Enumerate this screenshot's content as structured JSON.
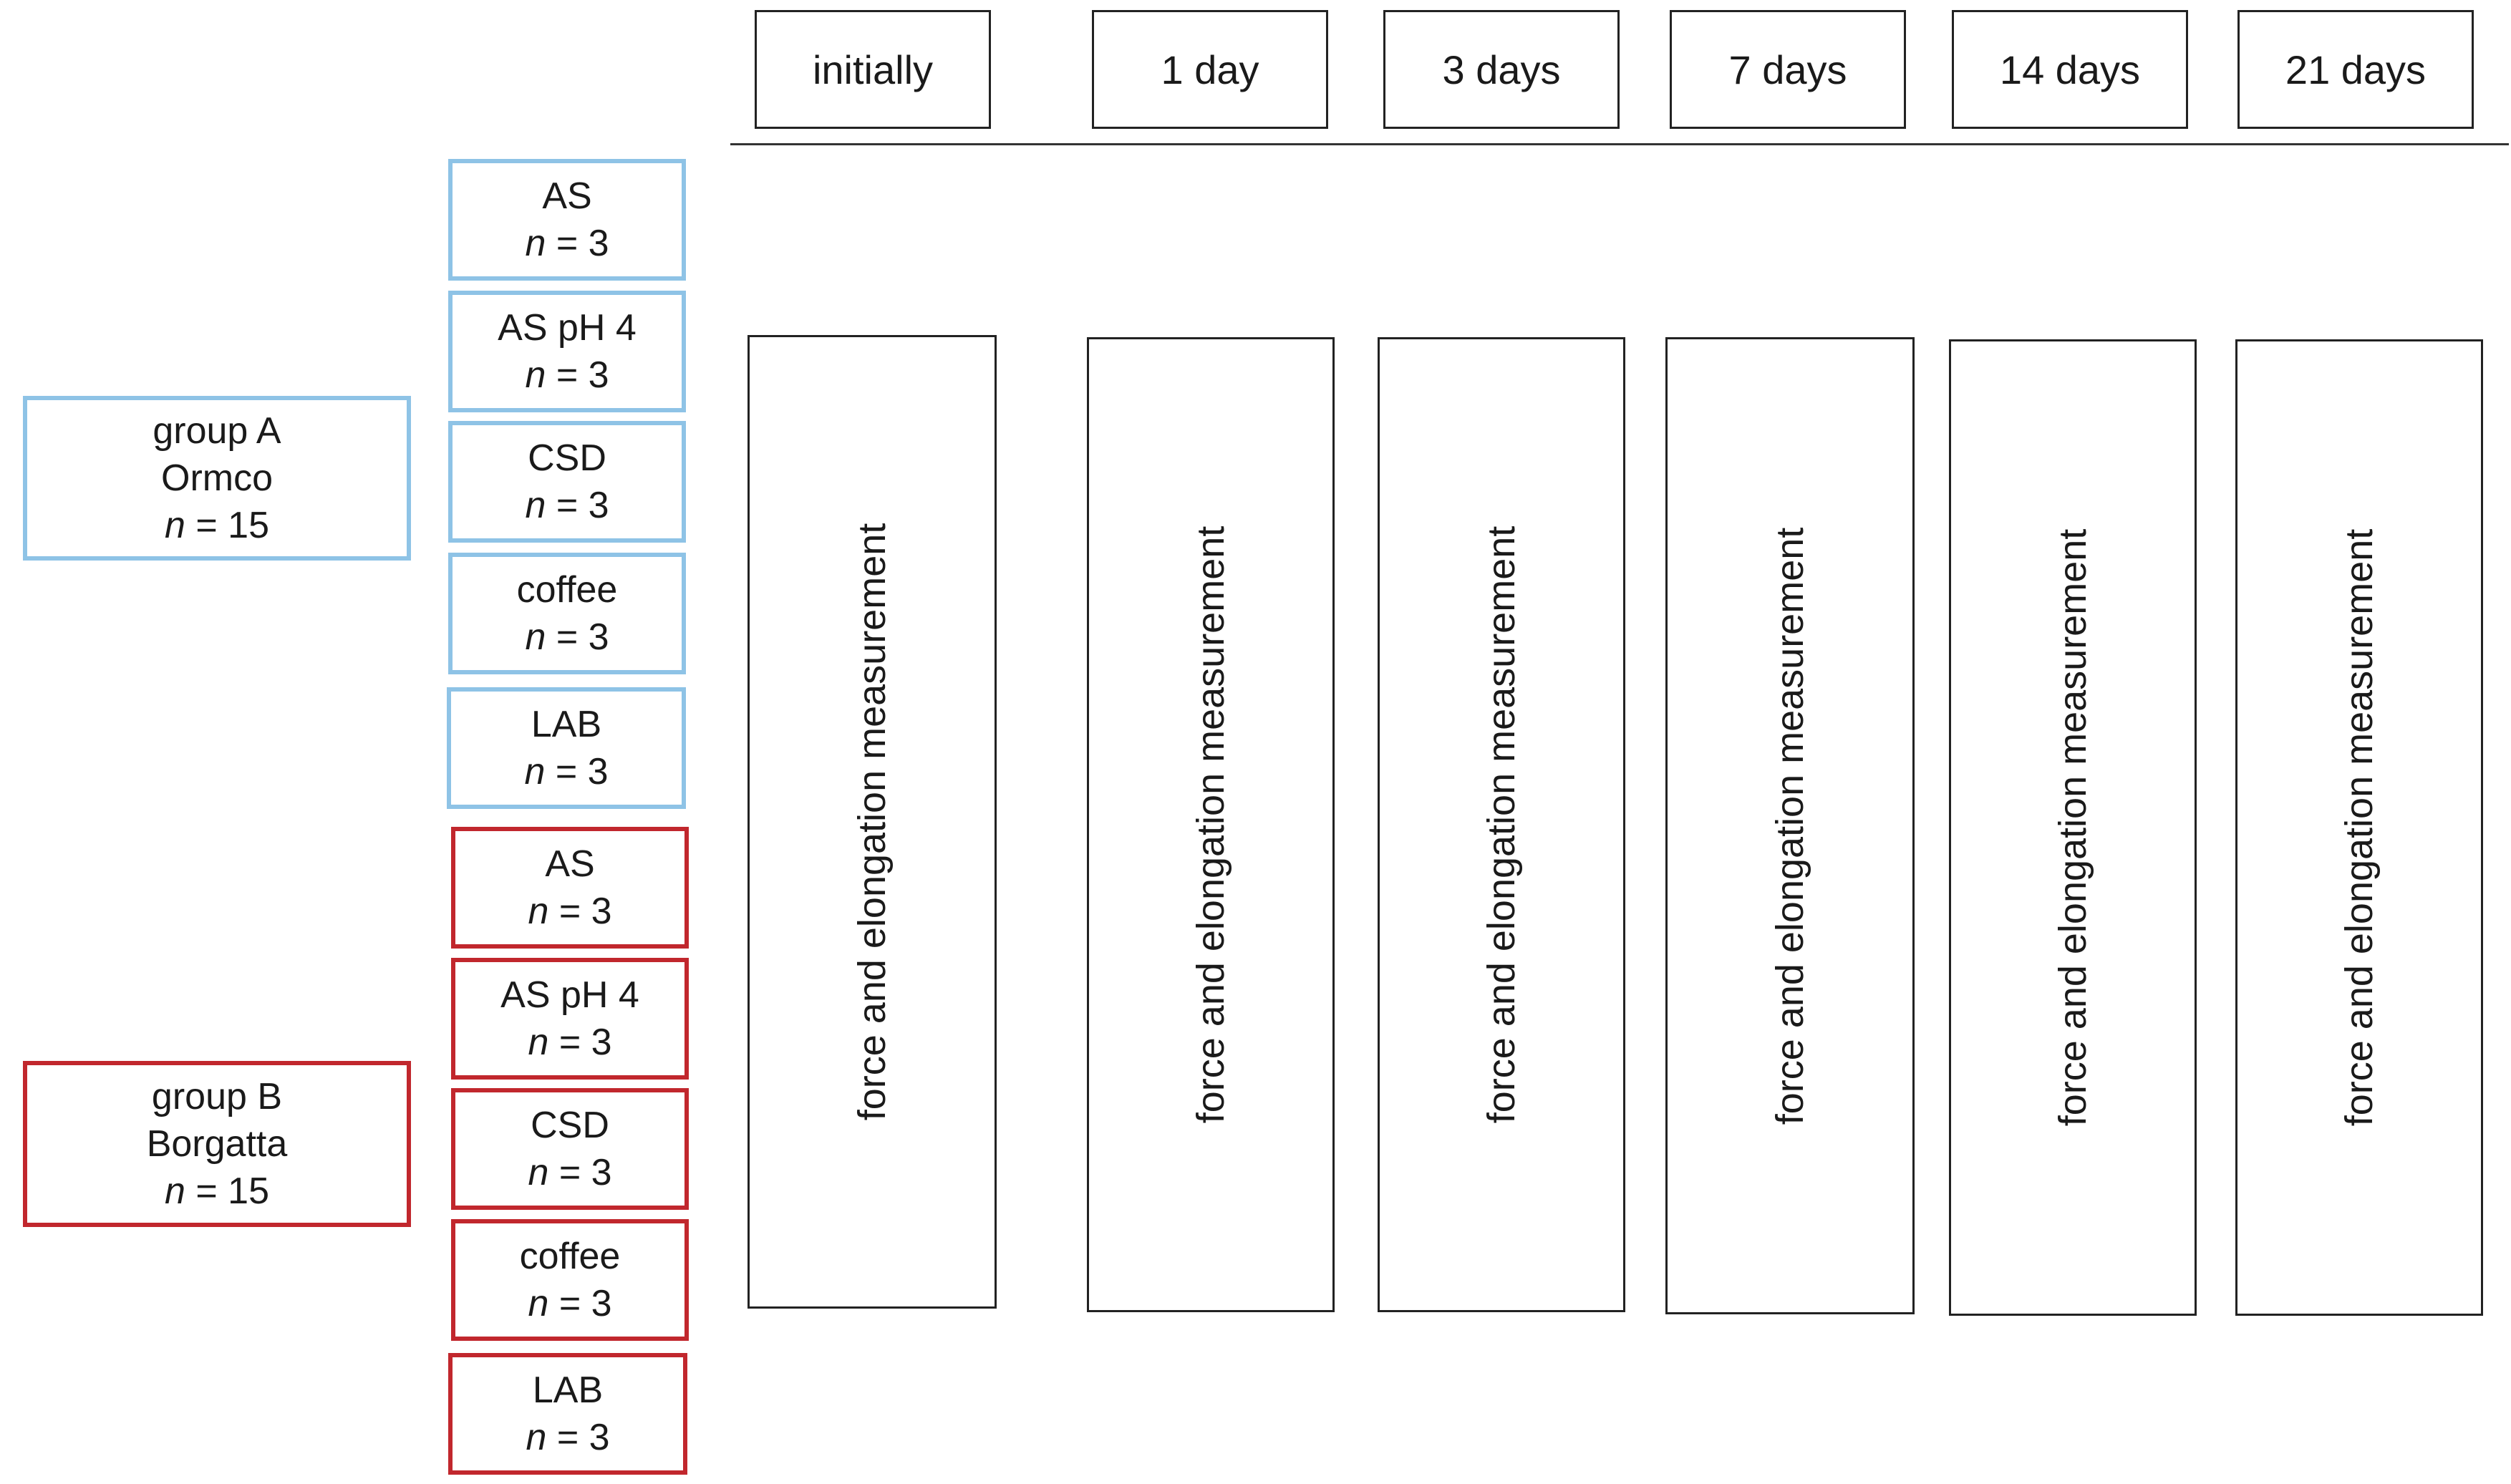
{
  "timepoints": [
    "initially",
    "1 day",
    "3 days",
    "7 days",
    "14 days",
    "21 days"
  ],
  "measurement_label": "force and elongation measurement",
  "groups": [
    {
      "label": "group A",
      "brand": "Ormco",
      "n_prefix": "n",
      "n_value": "= 15",
      "color": "#8ec3e6"
    },
    {
      "label": "group B",
      "brand": "Borgatta",
      "n_prefix": "n",
      "n_value": "= 15",
      "color": "#c1272d"
    }
  ],
  "subgroups_a": [
    {
      "name": "AS",
      "n_prefix": "n",
      "n_value": "= 3"
    },
    {
      "name": "AS pH 4",
      "n_prefix": "n",
      "n_value": "= 3"
    },
    {
      "name": "CSD",
      "n_prefix": "n",
      "n_value": "= 3"
    },
    {
      "name": "coffee",
      "n_prefix": "n",
      "n_value": "= 3"
    },
    {
      "name": "LAB",
      "n_prefix": "n",
      "n_value": "= 3"
    }
  ],
  "subgroups_b": [
    {
      "name": "AS",
      "n_prefix": "n",
      "n_value": "= 3"
    },
    {
      "name": "AS pH 4",
      "n_prefix": "n",
      "n_value": "= 3"
    },
    {
      "name": "CSD",
      "n_prefix": "n",
      "n_value": "= 3"
    },
    {
      "name": "coffee",
      "n_prefix": "n",
      "n_value": "= 3"
    },
    {
      "name": "LAB",
      "n_prefix": "n",
      "n_value": "= 3"
    }
  ]
}
